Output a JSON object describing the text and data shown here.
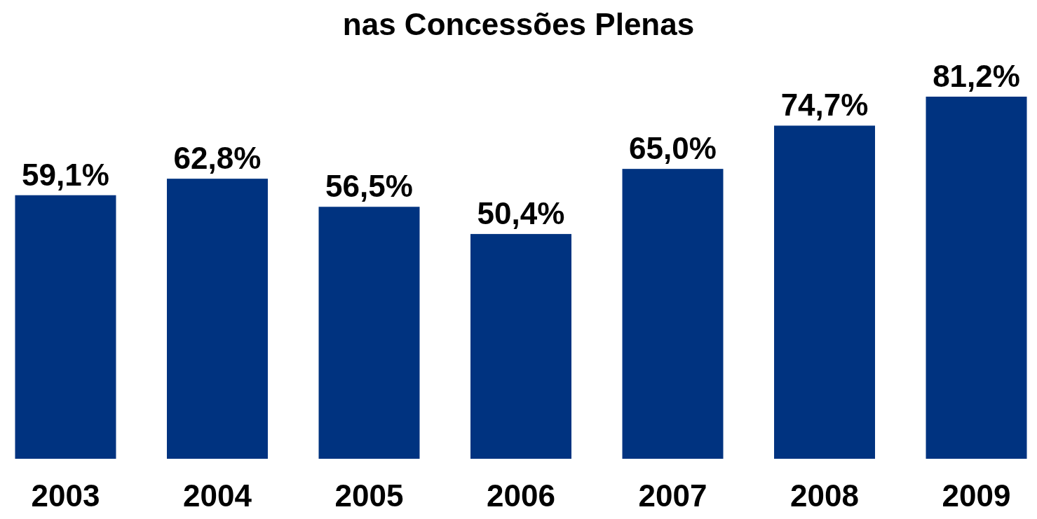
{
  "chart_data": {
    "type": "bar",
    "title": "nas Concessões Plenas",
    "categories": [
      "2003",
      "2004",
      "2005",
      "2006",
      "2007",
      "2008",
      "2009"
    ],
    "values": [
      59.1,
      62.8,
      56.5,
      50.4,
      65.0,
      74.7,
      81.2
    ],
    "value_labels": [
      "59,1%",
      "62,8%",
      "56,5%",
      "50,4%",
      "65,0%",
      "74,7%",
      "81,2%"
    ],
    "color": "#003380"
  }
}
